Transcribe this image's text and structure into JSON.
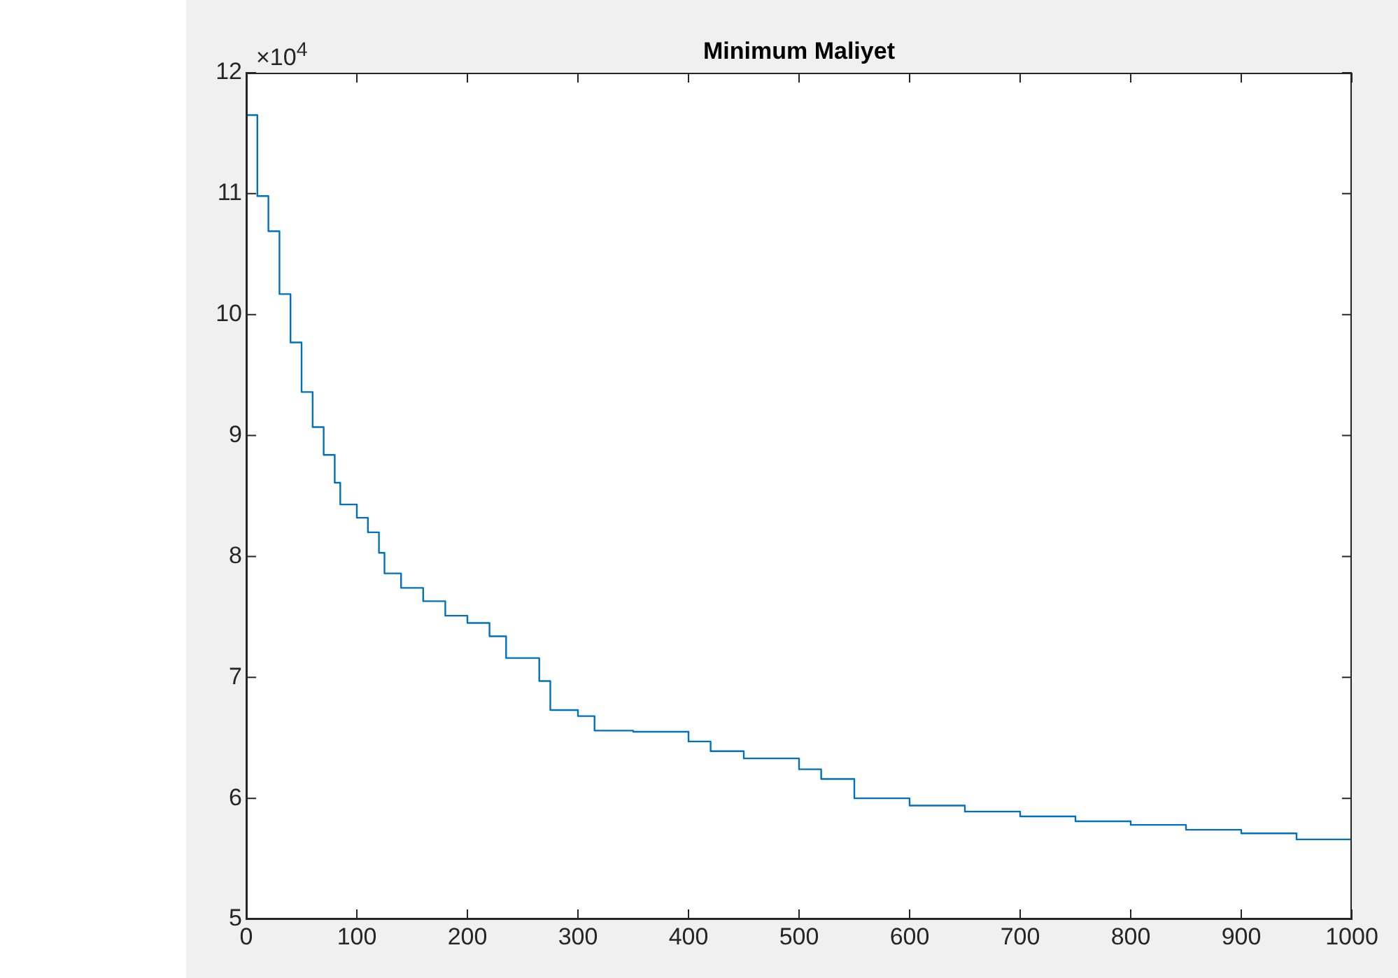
{
  "chart_data": {
    "type": "step",
    "title": "Minimum Maliyet",
    "annotations": [
      "×10$^{4}$"
    ],
    "x": [
      0,
      10,
      20,
      30,
      40,
      50,
      60,
      70,
      80,
      85,
      100,
      110,
      120,
      125,
      140,
      160,
      180,
      200,
      220,
      235,
      255,
      265,
      275,
      300,
      315,
      350,
      400,
      420,
      450,
      500,
      520,
      550,
      600,
      650,
      700,
      750,
      800,
      850,
      900,
      950,
      1000
    ],
    "series": [
      {
        "color": "#0072bd",
        "values": [
          11.65,
          10.98,
          10.69,
          10.17,
          9.77,
          9.36,
          9.07,
          8.84,
          8.61,
          8.43,
          8.32,
          8.2,
          8.03,
          7.86,
          7.74,
          7.63,
          7.51,
          7.45,
          7.34,
          7.16,
          7.16,
          6.97,
          6.73,
          6.68,
          6.56,
          6.55,
          6.47,
          6.39,
          6.33,
          6.24,
          6.16,
          6.0,
          5.94,
          5.89,
          5.85,
          5.81,
          5.78,
          5.74,
          5.71,
          5.66,
          5.63
        ]
      }
    ],
    "xlim": [
      0,
      1000
    ],
    "xticks": [
      0,
      100,
      200,
      300,
      400,
      500,
      600,
      700,
      800,
      900,
      1000
    ],
    "ylim": [
      5,
      12
    ],
    "yticks": [
      5,
      6,
      7,
      8,
      9,
      10,
      11,
      12
    ],
    "grid": false,
    "legend": false
  }
}
